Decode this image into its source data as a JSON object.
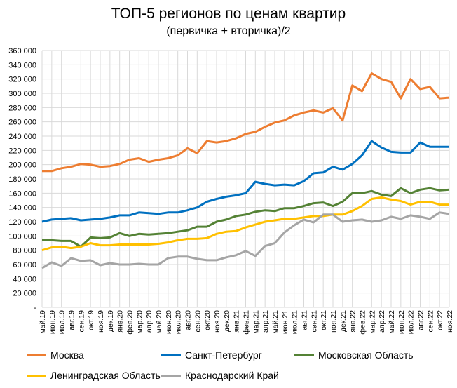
{
  "chart_data": {
    "type": "line",
    "title": "ТОП-5 регионов по ценам квартир",
    "subtitle": "(первичка + вторичка)/2",
    "xlabel": "",
    "ylabel": "",
    "ylim": [
      0,
      360000
    ],
    "yticks": [
      "-",
      "20 000",
      "40 000",
      "60 000",
      "80 000",
      "100 000",
      "120 000",
      "140 000",
      "160 000",
      "180 000",
      "200 000",
      "220 000",
      "240 000",
      "260 000",
      "280 000",
      "300 000",
      "320 000",
      "340 000",
      "360 000"
    ],
    "grid": true,
    "legend": "bottom",
    "categories": [
      "май.19",
      "июн.19",
      "июл.19",
      "авг.19",
      "сен.19",
      "окт.19",
      "ноя.19",
      "дек.19",
      "янв.20",
      "фев.20",
      "мар.20",
      "апр.20",
      "май.20",
      "июн.20",
      "июл.20",
      "авг.20",
      "сен.20",
      "окт.20",
      "ноя.20",
      "дек.20",
      "янв.21",
      "фев.21",
      "мар.21",
      "апр.21",
      "май.21",
      "июн.21",
      "июл.21",
      "авг.21",
      "сен.21",
      "окт.21",
      "ноя.21",
      "дек.21",
      "янв.22",
      "фев.22",
      "мар.22",
      "апр.22",
      "май.22",
      "июн.22",
      "июл.22",
      "авг.22",
      "сен.22",
      "окт.22",
      "ноя.22"
    ],
    "series": [
      {
        "name": "Москва",
        "color": "#ED7D31",
        "values": [
          191000,
          191000,
          195000,
          197000,
          201000,
          200000,
          197000,
          198000,
          201000,
          207000,
          209000,
          204000,
          207000,
          209000,
          213000,
          223000,
          216000,
          233000,
          231000,
          233000,
          237000,
          243000,
          246000,
          253000,
          259000,
          262000,
          269000,
          273000,
          276000,
          273000,
          279000,
          262000,
          311000,
          303000,
          328000,
          320000,
          316000,
          293000,
          320000,
          306000,
          309000,
          293000,
          294000
        ]
      },
      {
        "name": "Санкт-Петербург",
        "color": "#0070C0",
        "values": [
          120000,
          123000,
          124000,
          125000,
          122000,
          123000,
          124000,
          126000,
          129000,
          129000,
          133000,
          132000,
          131000,
          133000,
          133000,
          136000,
          140000,
          148000,
          152000,
          155000,
          157000,
          160000,
          176000,
          173000,
          171000,
          172000,
          171000,
          177000,
          188000,
          189000,
          197000,
          193000,
          201000,
          213000,
          233000,
          224000,
          218000,
          217000,
          217000,
          231000,
          225000,
          225000,
          225000
        ]
      },
      {
        "name": "Московская Область",
        "color": "#548235",
        "values": [
          94000,
          94000,
          93000,
          93000,
          85000,
          98000,
          97000,
          98000,
          104000,
          100000,
          103000,
          102000,
          103000,
          104000,
          106000,
          108000,
          113000,
          113000,
          120000,
          123000,
          128000,
          130000,
          134000,
          136000,
          135000,
          139000,
          139000,
          142000,
          146000,
          147000,
          142000,
          148000,
          160000,
          160000,
          163000,
          158000,
          156000,
          167000,
          160000,
          165000,
          167000,
          164000,
          165000
        ]
      },
      {
        "name": "Ленинградская Область",
        "color": "#FFC000",
        "values": [
          80000,
          84000,
          85000,
          83000,
          85000,
          90000,
          87000,
          87000,
          88000,
          88000,
          88000,
          88000,
          89000,
          91000,
          94000,
          96000,
          96000,
          97000,
          103000,
          106000,
          107000,
          112000,
          116000,
          120000,
          122000,
          124000,
          124000,
          126000,
          128000,
          128000,
          130000,
          130000,
          135000,
          142000,
          152000,
          154000,
          151000,
          149000,
          144000,
          148000,
          148000,
          144000,
          144000
        ]
      },
      {
        "name": "Краснодарский Край",
        "color": "#A5A5A5",
        "values": [
          55000,
          63000,
          58000,
          69000,
          65000,
          66000,
          59000,
          62000,
          60000,
          60000,
          61000,
          60000,
          60000,
          69000,
          71000,
          71000,
          68000,
          66000,
          66000,
          70000,
          73000,
          79000,
          72000,
          86000,
          90000,
          105000,
          115000,
          123000,
          119000,
          130000,
          130000,
          120000,
          122000,
          123000,
          120000,
          122000,
          127000,
          124000,
          129000,
          127000,
          124000,
          133000,
          131000
        ]
      }
    ]
  }
}
